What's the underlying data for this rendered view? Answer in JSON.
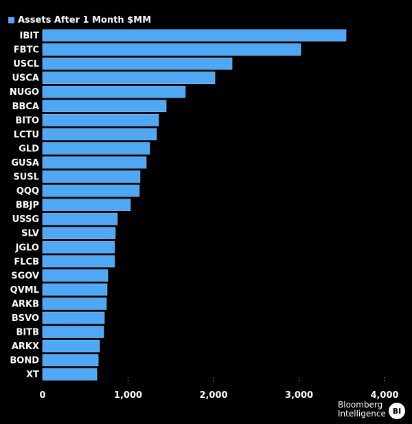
{
  "chart_data": {
    "type": "bar",
    "orientation": "horizontal",
    "title": "",
    "legend": [
      {
        "label": "Assets After 1 Month $MM",
        "color": "#4ea8f5"
      }
    ],
    "legend_placement": "top-left",
    "categories": [
      "IBIT",
      "FBTC",
      "USCL",
      "USCA",
      "NUGO",
      "BBCA",
      "BITO",
      "LCTU",
      "GLD",
      "GUSA",
      "SUSL",
      "QQQ",
      "BBJP",
      "USSG",
      "SLV",
      "JGLO",
      "FLCB",
      "SGOV",
      "QVML",
      "ARKB",
      "BSVO",
      "BITB",
      "ARKX",
      "BOND",
      "XT"
    ],
    "values": [
      3550,
      3020,
      2217,
      2016,
      1670,
      1446,
      1357,
      1333,
      1253,
      1213,
      1140,
      1132,
      1028,
      875,
      851,
      843,
      843,
      763,
      755,
      747,
      723,
      715,
      667,
      651,
      635
    ],
    "xlabel": "",
    "ylabel": "",
    "xlim": [
      0,
      4000
    ],
    "xticks": [
      0,
      1000,
      2000,
      3000,
      4000
    ],
    "xtick_labels": [
      "0",
      "1,000",
      "2,000",
      "3,000",
      "4,000"
    ],
    "grid": false
  },
  "source": {
    "logo_line1": "Bloomberg",
    "logo_line2": "Intelligence",
    "badge": "BI"
  }
}
